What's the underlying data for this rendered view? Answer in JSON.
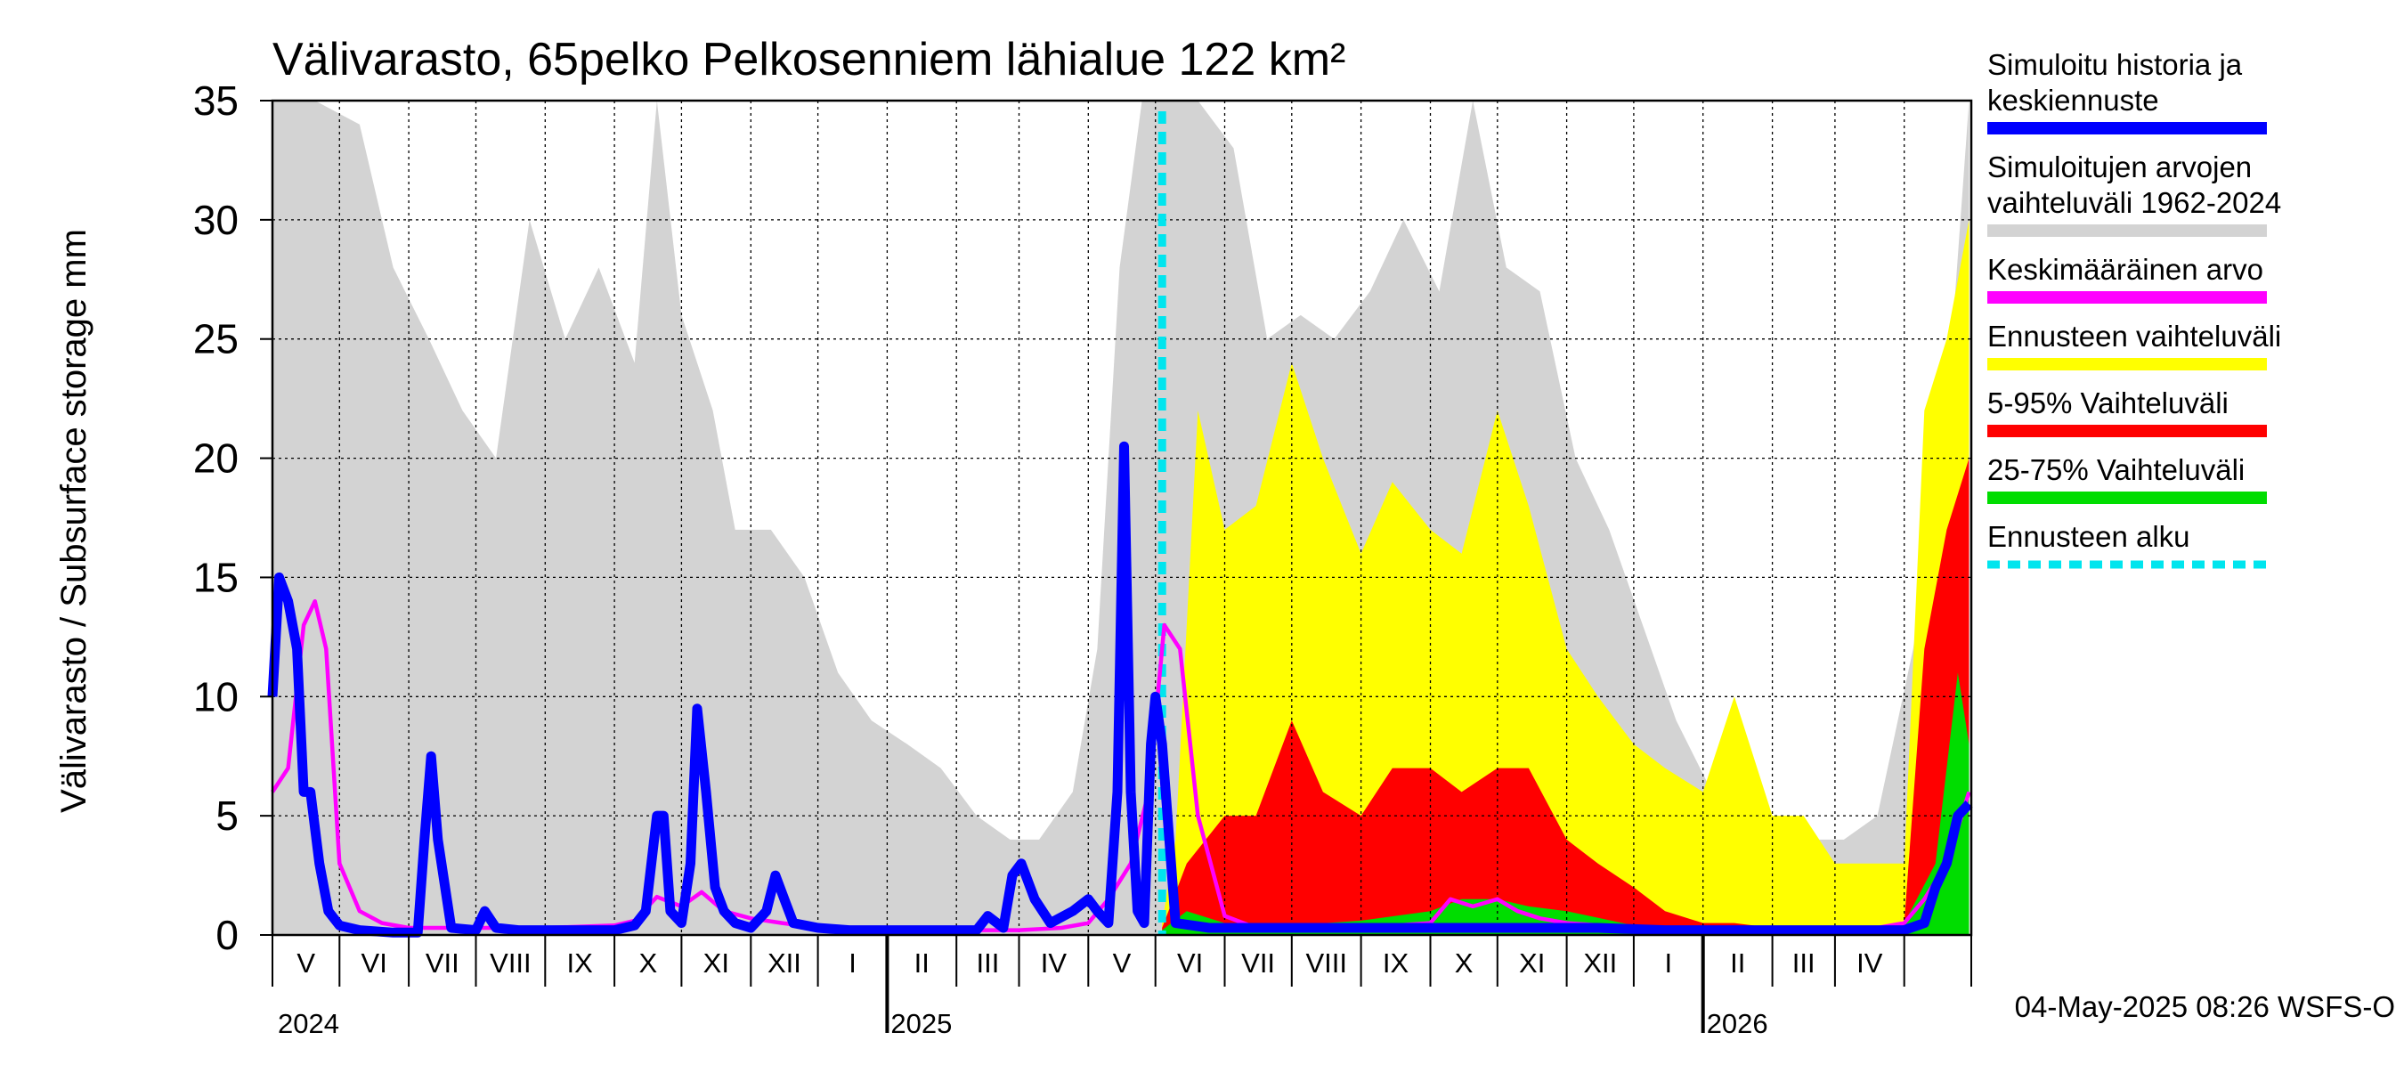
{
  "chart_data": {
    "type": "area",
    "title": "Välivarasto, 65pelko Pelkosenniem lähialue 122 km²",
    "ylabel": "Välivarasto / Subsurface storage  mm",
    "ylim": [
      0,
      35
    ],
    "yticks": [
      "0",
      "5",
      "10",
      "15",
      "20",
      "25",
      "30",
      "35"
    ],
    "grid": true,
    "legend_position": "right",
    "x_start": "2024-04-01",
    "x_end": "2026-04-30",
    "forecast_start": "2025-05-04",
    "month_labels": [
      "V",
      "VI",
      "VII",
      "VIII",
      "IX",
      "X",
      "XI",
      "XII",
      "I",
      "II",
      "III",
      "IV",
      "V",
      "VI",
      "VII",
      "VIII",
      "IX",
      "X",
      "XI",
      "XII",
      "I",
      "II",
      "III",
      "IV"
    ],
    "year_labels": [
      "2024",
      "2025",
      "2026"
    ],
    "timestamp": "04-May-2025 08:26 WSFS-O",
    "legend": [
      {
        "label": "Simuloitu historia ja",
        "label2": "keskiennuste",
        "color": "#0000ff",
        "style": "solid"
      },
      {
        "label": "Simuloitujen arvojen",
        "label2": "vaihteluväli 1962-2024",
        "color": "#d3d3d3",
        "style": "solid"
      },
      {
        "label": "Keskimääräinen arvo",
        "label2": "",
        "color": "#ff00ff",
        "style": "solid"
      },
      {
        "label": "Ennusteen vaihteluväli",
        "label2": "",
        "color": "#ffff00",
        "style": "solid"
      },
      {
        "label": "5-95% Vaihteluväli",
        "label2": "",
        "color": "#ff0000",
        "style": "solid"
      },
      {
        "label": "25-75% Vaihteluväli",
        "label2": "",
        "color": "#00dd00",
        "style": "solid"
      },
      {
        "label": "Ennusteen alku",
        "label2": "",
        "color": "#00e5ee",
        "style": "dashed"
      }
    ],
    "series": [
      {
        "name": "Simuloitujen arvojen vaihteluväli 1962-2024",
        "color": "#d3d3d3",
        "kind": "band",
        "x": [
          "2024-04-01",
          "2024-04-20",
          "2024-05-10",
          "2024-05-25",
          "2024-06-10",
          "2024-06-25",
          "2024-07-10",
          "2024-07-25",
          "2024-08-10",
          "2024-08-25",
          "2024-09-10",
          "2024-09-20",
          "2024-10-01",
          "2024-10-15",
          "2024-10-25",
          "2024-11-10",
          "2024-11-25",
          "2024-12-10",
          "2024-12-25",
          "2025-01-10",
          "2025-01-25",
          "2025-02-10",
          "2025-02-25",
          "2025-03-10",
          "2025-03-25",
          "2025-04-05",
          "2025-04-15",
          "2025-04-25",
          "2025-05-04",
          "2025-05-20",
          "2025-06-05",
          "2025-06-20",
          "2025-07-05",
          "2025-07-20",
          "2025-08-05",
          "2025-08-20",
          "2025-09-05",
          "2025-09-20",
          "2025-10-05",
          "2025-10-20",
          "2025-11-05",
          "2025-11-20",
          "2025-12-05",
          "2025-12-20",
          "2026-01-05",
          "2026-01-20",
          "2026-02-05",
          "2026-02-20",
          "2026-03-05",
          "2026-03-20",
          "2026-04-05",
          "2026-04-20",
          "2026-04-30"
        ],
        "low": [
          0,
          0,
          0,
          0,
          0,
          0,
          0,
          0,
          0,
          0,
          0,
          0,
          0,
          0,
          0,
          0,
          0,
          0,
          0,
          0,
          0,
          0,
          0,
          0,
          0,
          0,
          0,
          0,
          0,
          0,
          0,
          0,
          0,
          0,
          0,
          0,
          0,
          0,
          0,
          0,
          0,
          0,
          0,
          0,
          0,
          0,
          0,
          0,
          0,
          0,
          0,
          0,
          0
        ],
        "high": [
          35,
          35,
          34,
          28,
          25,
          22,
          20,
          30,
          25,
          28,
          24,
          35,
          26,
          22,
          17,
          17,
          15,
          11,
          9,
          8,
          7,
          5,
          4,
          4,
          6,
          12,
          28,
          35,
          35,
          35,
          33,
          25,
          26,
          25,
          27,
          30,
          27,
          35,
          28,
          27,
          20,
          17,
          13,
          9,
          6,
          5,
          5,
          4,
          4,
          5,
          12,
          22,
          35
        ]
      },
      {
        "name": "Ennusteen vaihteluväli",
        "color": "#ffff00",
        "kind": "band",
        "x": [
          "2025-05-04",
          "2025-05-10",
          "2025-05-20",
          "2025-06-01",
          "2025-06-15",
          "2025-07-01",
          "2025-07-15",
          "2025-08-01",
          "2025-08-15",
          "2025-09-01",
          "2025-09-15",
          "2025-10-01",
          "2025-10-15",
          "2025-11-01",
          "2025-11-15",
          "2025-12-01",
          "2025-12-15",
          "2026-01-01",
          "2026-01-15",
          "2026-02-01",
          "2026-02-15",
          "2026-03-01",
          "2026-03-15",
          "2026-04-01",
          "2026-04-10",
          "2026-04-20",
          "2026-04-30"
        ],
        "low": [
          0,
          0,
          0,
          0,
          0,
          0,
          0,
          0,
          0,
          0,
          0,
          0,
          0,
          0,
          0,
          0,
          0,
          0,
          0,
          0,
          0,
          0,
          0,
          0,
          0,
          0,
          0
        ],
        "high": [
          0.5,
          4,
          22,
          17,
          18,
          24,
          20,
          16,
          19,
          17,
          16,
          22,
          18,
          12,
          10,
          8,
          7,
          6,
          10,
          5,
          5,
          3,
          3,
          3,
          22,
          25,
          30
        ]
      },
      {
        "name": "5-95% Vaihteluväli",
        "color": "#ff0000",
        "kind": "band",
        "x": [
          "2025-05-04",
          "2025-05-15",
          "2025-06-01",
          "2025-06-15",
          "2025-07-01",
          "2025-07-15",
          "2025-08-01",
          "2025-08-15",
          "2025-09-01",
          "2025-09-15",
          "2025-10-01",
          "2025-10-15",
          "2025-11-01",
          "2025-11-15",
          "2025-12-01",
          "2025-12-15",
          "2026-01-01",
          "2026-01-15",
          "2026-02-01",
          "2026-02-15",
          "2026-03-01",
          "2026-03-15",
          "2026-04-01",
          "2026-04-10",
          "2026-04-20",
          "2026-04-30"
        ],
        "low": [
          0,
          0,
          0,
          0,
          0,
          0,
          0,
          0,
          0,
          0,
          0,
          0,
          0,
          0,
          0,
          0,
          0,
          0,
          0,
          0,
          0,
          0,
          0,
          0,
          0,
          0
        ],
        "high": [
          0.3,
          3,
          5,
          5,
          9,
          6,
          5,
          7,
          7,
          6,
          7,
          7,
          4,
          3,
          2,
          1,
          0.5,
          0.5,
          0.3,
          0.3,
          0.3,
          0.3,
          0.5,
          12,
          17,
          20
        ]
      },
      {
        "name": "25-75% Vaihteluväli",
        "color": "#00dd00",
        "kind": "band",
        "x": [
          "2025-05-04",
          "2025-05-15",
          "2025-06-01",
          "2025-07-01",
          "2025-08-01",
          "2025-09-01",
          "2025-09-15",
          "2025-10-01",
          "2025-10-15",
          "2025-11-01",
          "2025-12-01",
          "2026-01-01",
          "2026-02-01",
          "2026-03-01",
          "2026-04-01",
          "2026-04-15",
          "2026-04-25",
          "2026-04-30"
        ],
        "low": [
          0,
          0,
          0,
          0,
          0,
          0,
          0,
          0,
          0,
          0,
          0,
          0,
          0,
          0,
          0,
          0,
          0,
          0
        ],
        "high": [
          0.2,
          1,
          0.5,
          0.4,
          0.6,
          1,
          1.5,
          1.5,
          1.2,
          1,
          0.4,
          0.2,
          0.2,
          0.2,
          0.5,
          3,
          11,
          8
        ]
      },
      {
        "name": "Keskimääräinen arvo",
        "color": "#ff00ff",
        "kind": "line",
        "x": [
          "2024-04-01",
          "2024-04-08",
          "2024-04-15",
          "2024-04-20",
          "2024-04-25",
          "2024-05-01",
          "2024-05-10",
          "2024-05-20",
          "2024-06-01",
          "2024-06-15",
          "2024-07-01",
          "2024-08-01",
          "2024-09-01",
          "2024-09-10",
          "2024-09-20",
          "2024-10-01",
          "2024-10-10",
          "2024-10-20",
          "2024-11-01",
          "2024-11-15",
          "2024-12-01",
          "2025-01-01",
          "2025-02-01",
          "2025-03-01",
          "2025-03-20",
          "2025-04-01",
          "2025-04-10",
          "2025-04-20",
          "2025-04-28",
          "2025-05-05",
          "2025-05-12",
          "2025-05-20",
          "2025-06-01",
          "2025-06-15",
          "2025-07-01",
          "2025-08-01",
          "2025-09-01",
          "2025-09-10",
          "2025-09-20",
          "2025-10-01",
          "2025-10-10",
          "2025-10-20",
          "2025-11-01",
          "2025-12-01",
          "2026-01-01",
          "2026-02-01",
          "2026-03-01",
          "2026-03-20",
          "2026-04-01",
          "2026-04-10",
          "2026-04-20",
          "2026-04-30"
        ],
        "y": [
          6,
          7,
          13,
          14,
          12,
          3,
          1,
          0.5,
          0.3,
          0.3,
          0.3,
          0.3,
          0.4,
          0.6,
          1.6,
          1.2,
          1.8,
          1.0,
          0.7,
          0.5,
          0.3,
          0.2,
          0.2,
          0.2,
          0.3,
          0.5,
          1.5,
          3,
          6,
          13,
          12,
          5,
          0.8,
          0.3,
          0.3,
          0.3,
          0.5,
          1.5,
          1.2,
          1.5,
          1.0,
          0.7,
          0.5,
          0.3,
          0.2,
          0.2,
          0.2,
          0.3,
          0.5,
          1.5,
          3,
          6
        ]
      },
      {
        "name": "Simuloitu historia ja keskiennuste",
        "color": "#0000ff",
        "kind": "line",
        "x": [
          "2024-04-01",
          "2024-04-04",
          "2024-04-08",
          "2024-04-12",
          "2024-04-15",
          "2024-04-18",
          "2024-04-22",
          "2024-04-26",
          "2024-05-01",
          "2024-05-10",
          "2024-05-25",
          "2024-06-05",
          "2024-06-08",
          "2024-06-11",
          "2024-06-14",
          "2024-06-20",
          "2024-07-01",
          "2024-07-05",
          "2024-07-10",
          "2024-07-20",
          "2024-08-15",
          "2024-09-01",
          "2024-09-10",
          "2024-09-15",
          "2024-09-20",
          "2024-09-23",
          "2024-09-26",
          "2024-10-01",
          "2024-10-05",
          "2024-10-08",
          "2024-10-12",
          "2024-10-16",
          "2024-10-20",
          "2024-10-25",
          "2024-11-01",
          "2024-11-08",
          "2024-11-12",
          "2024-11-16",
          "2024-11-20",
          "2024-12-01",
          "2024-12-15",
          "2025-01-01",
          "2025-01-15",
          "2025-02-01",
          "2025-02-10",
          "2025-02-15",
          "2025-02-22",
          "2025-02-26",
          "2025-03-02",
          "2025-03-08",
          "2025-03-15",
          "2025-03-25",
          "2025-04-01",
          "2025-04-05",
          "2025-04-10",
          "2025-04-14",
          "2025-04-17",
          "2025-04-20",
          "2025-04-23",
          "2025-04-26",
          "2025-04-29",
          "2025-05-01",
          "2025-05-04",
          "2025-05-10",
          "2025-05-25",
          "2025-06-15",
          "2025-07-15",
          "2025-08-15",
          "2025-09-15",
          "2025-10-15",
          "2025-11-15",
          "2025-12-15",
          "2026-01-15",
          "2026-02-15",
          "2026-03-15",
          "2026-04-01",
          "2026-04-10",
          "2026-04-15",
          "2026-04-20",
          "2026-04-25",
          "2026-04-30"
        ],
        "y": [
          10,
          15,
          14,
          12,
          6,
          6,
          3,
          1,
          0.4,
          0.2,
          0.1,
          0.1,
          4,
          7.5,
          4,
          0.3,
          0.2,
          1,
          0.3,
          0.2,
          0.2,
          0.2,
          0.4,
          1,
          5,
          5,
          1,
          0.5,
          3,
          9.5,
          6,
          2,
          1,
          0.5,
          0.3,
          1,
          2.5,
          1.5,
          0.5,
          0.3,
          0.2,
          0.2,
          0.2,
          0.2,
          0.2,
          0.8,
          0.3,
          2.5,
          3,
          1.5,
          0.5,
          1,
          1.5,
          1,
          0.5,
          6,
          20.5,
          6,
          1,
          0.5,
          8,
          10,
          8,
          0.5,
          0.3,
          0.3,
          0.3,
          0.3,
          0.3,
          0.3,
          0.3,
          0.2,
          0.2,
          0.2,
          0.2,
          0.2,
          0.5,
          2,
          3,
          5,
          5.5
        ]
      }
    ]
  }
}
